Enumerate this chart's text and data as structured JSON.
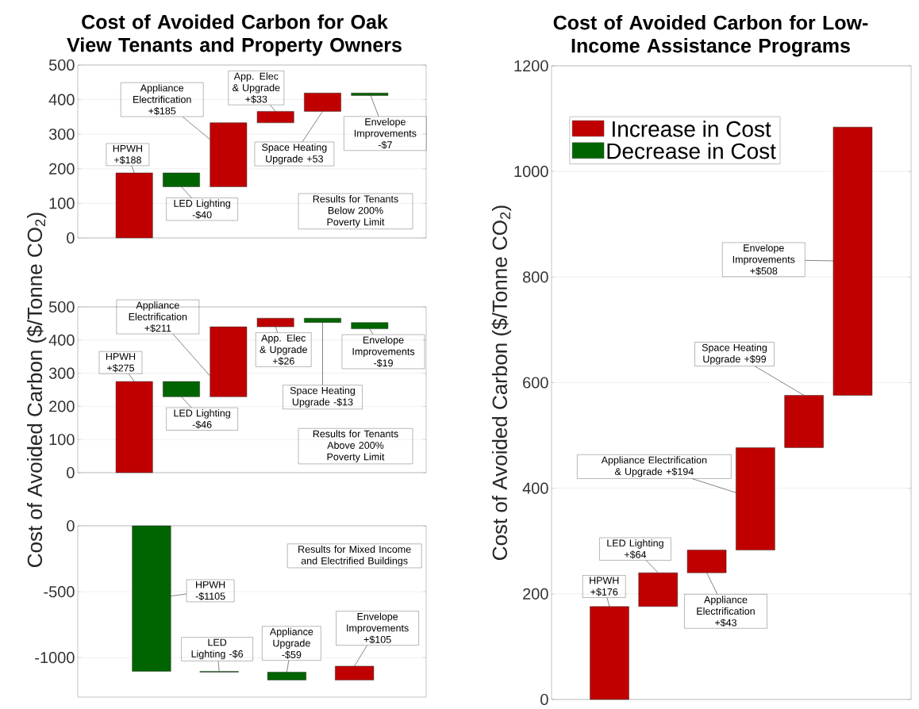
{
  "chart_data": [
    {
      "type": "bar",
      "title": "Cost of Avoided Carbon for Oak View Tenants and Property Owners",
      "categories": [
        null,
        null,
        null,
        null,
        null,
        null
      ],
      "base": [
        0,
        188,
        148,
        333,
        366,
        419
      ],
      "values": [
        188,
        -40,
        185,
        33,
        53,
        -7
      ],
      "colors": [
        "#c00000",
        "#006400",
        "#c00000",
        "#c00000",
        "#c00000",
        "#006400"
      ],
      "ylim": [
        0,
        500
      ],
      "yticks": [
        0,
        100,
        200,
        300,
        400,
        500
      ],
      "grid": "y",
      "tick_labels": "y",
      "annotations": [
        "HPWH +$188",
        "LED Lighting -$40",
        "Appliance Electrification +$185",
        "App. Elec & Upgrade +$33",
        "Space Heating Upgrade +53",
        "Envelope Improvements -$7",
        "Results for Tenants Below 200% Poverty Limit"
      ]
    },
    {
      "type": "bar",
      "ylabel": "Cost of Avoided Carbon ($/Tonne CO$_{2}$)",
      "categories": [
        null,
        null,
        null,
        null,
        null,
        null
      ],
      "base": [
        0,
        275,
        229,
        440,
        466,
        453
      ],
      "values": [
        275,
        -46,
        211,
        26,
        -13,
        -19
      ],
      "colors": [
        "#c00000",
        "#006400",
        "#c00000",
        "#c00000",
        "#006400",
        "#006400"
      ],
      "ylim": [
        0,
        500
      ],
      "yticks": [
        0,
        100,
        200,
        300,
        400,
        500
      ],
      "grid": "y",
      "tick_labels": "y",
      "annotations": [
        "HPWH +$275",
        "LED Lighting -$46",
        "Appliance Electrification +$211",
        "App. Elec & Upgrade +$26",
        "Space Heating Upgrade -$13",
        "Envelope Improvements -$19",
        "Results for Tenants Above 200% Poverty Limit"
      ]
    },
    {
      "type": "bar",
      "categories": [
        null,
        null,
        null,
        null
      ],
      "base": [
        0,
        -1105,
        -1111,
        -1170
      ],
      "values": [
        -1105,
        -6,
        -59,
        105
      ],
      "colors": [
        "#006400",
        "#006400",
        "#006400",
        "#c00000"
      ],
      "ylim": [
        -1300,
        0
      ],
      "yticks": [
        -1000,
        -500,
        0
      ],
      "grid": "y",
      "tick_labels": "y",
      "annotations": [
        "HPWH -$1105",
        "LED Lighting -$6",
        "Appliance Upgrade -$59",
        "Envelope Improvements +$105",
        "Results for Mixed Income and Electrified Buildings"
      ]
    },
    {
      "type": "bar",
      "title": "Cost of Avoided Carbon for Low-Income Assistance Programs",
      "ylabel": "Cost of Avoided Carbon ($/Tonne CO$_{2}$)",
      "categories": [
        null,
        null,
        null,
        null,
        null,
        null
      ],
      "series": [
        {
          "name": "Increase in Cost",
          "color": "#c00000",
          "base": [
            0,
            176,
            240,
            283,
            477,
            576
          ],
          "values": [
            176,
            64,
            43,
            194,
            99,
            508
          ]
        },
        {
          "name": "Decrease in Cost",
          "color": "#006400",
          "values": [
            null,
            null,
            null,
            null,
            null,
            null
          ]
        }
      ],
      "ylim": [
        0,
        1200
      ],
      "yticks": [
        0,
        200,
        400,
        600,
        800,
        1000,
        1200
      ],
      "grid": "y",
      "tick_labels": "y",
      "legend": "top left",
      "annotations": [
        "HPWH +$176",
        "LED Lighting +$64",
        "Appliance Electrification +$43",
        "Appliance Electrification & Upgrade +$194",
        "Space Heating Upgrade +$99",
        "Envelope Improvements +$508"
      ]
    }
  ]
}
